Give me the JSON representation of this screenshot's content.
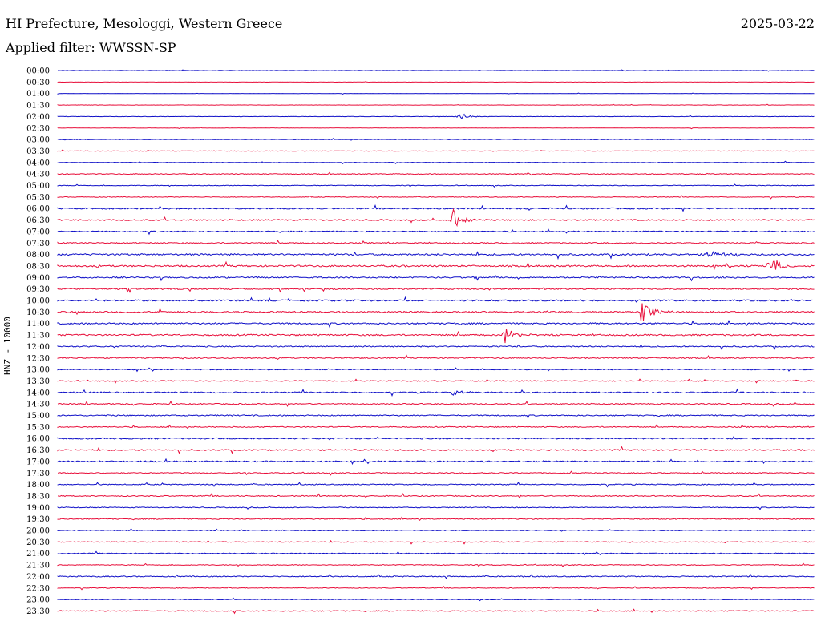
{
  "header": {
    "title": "HI Prefecture, Mesologgi, Western Greece",
    "date": "2025-03-22",
    "filter": "Applied filter: WWSSN-SP"
  },
  "chart_data": {
    "type": "line",
    "ylabel": "HNZ - 10000",
    "row_labels": [
      "00:00",
      "00:30",
      "01:00",
      "01:30",
      "02:00",
      "02:30",
      "03:00",
      "03:30",
      "04:00",
      "04:30",
      "05:00",
      "05:30",
      "06:00",
      "06:30",
      "07:00",
      "07:30",
      "08:00",
      "08:30",
      "09:00",
      "09:30",
      "10:00",
      "10:30",
      "11:00",
      "11:30",
      "12:00",
      "12:30",
      "13:00",
      "13:30",
      "14:00",
      "14:30",
      "15:00",
      "15:30",
      "16:00",
      "16:30",
      "17:00",
      "17:30",
      "18:00",
      "18:30",
      "19:00",
      "19:30",
      "20:00",
      "20:30",
      "21:00",
      "21:30",
      "22:00",
      "22:30",
      "23:00",
      "23:30"
    ],
    "colors": [
      "#1010c8",
      "#e8103c"
    ],
    "noise_levels": [
      0.2,
      0.15,
      0.15,
      0.2,
      0.25,
      0.2,
      0.35,
      0.3,
      0.3,
      0.5,
      0.4,
      0.4,
      0.8,
      0.8,
      0.7,
      0.7,
      1.0,
      1.0,
      0.8,
      0.8,
      0.9,
      0.9,
      0.9,
      0.9,
      0.7,
      0.7,
      0.6,
      0.6,
      0.8,
      0.7,
      0.7,
      0.6,
      0.8,
      0.8,
      0.8,
      0.6,
      0.6,
      0.6,
      0.5,
      0.6,
      0.5,
      0.5,
      0.5,
      0.5,
      0.6,
      0.4,
      0.4,
      0.6
    ],
    "events": [
      {
        "row": 13,
        "x": 0.52,
        "amp": 18
      },
      {
        "row": 17,
        "x": 0.94,
        "amp": 16
      },
      {
        "row": 21,
        "x": 0.77,
        "amp": 22
      },
      {
        "row": 23,
        "x": 0.59,
        "amp": 12
      },
      {
        "row": 16,
        "x": 0.86,
        "amp": 8
      },
      {
        "row": 4,
        "x": 0.53,
        "amp": 5
      },
      {
        "row": 28,
        "x": 0.52,
        "amp": 6
      }
    ]
  }
}
